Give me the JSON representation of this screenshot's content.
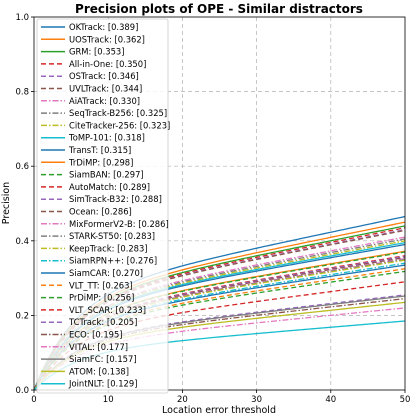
{
  "chart_data": {
    "type": "line",
    "title": "Precision plots of OPE - Similar distractors",
    "xlabel": "Location error threshold",
    "ylabel": "Precision",
    "xlim": [
      0,
      50
    ],
    "ylim": [
      0,
      1
    ],
    "x_ticks": [
      "0",
      "10",
      "20",
      "30",
      "40",
      "50"
    ],
    "y_ticks": [
      "0.0",
      "0.2",
      "0.4",
      "0.6",
      "0.8",
      "1.0"
    ],
    "grid": true,
    "legend_position": "upper-left",
    "series": [
      {
        "name": "OKTrack: [0.389]",
        "value": 0.389,
        "end": 0.465,
        "color": "#1f77b4",
        "dash": "solid"
      },
      {
        "name": "UOSTrack: [0.362]",
        "value": 0.362,
        "end": 0.45,
        "color": "#ff7f0e",
        "dash": "solid"
      },
      {
        "name": "GRM: [0.353]",
        "value": 0.353,
        "end": 0.44,
        "color": "#2ca02c",
        "dash": "solid"
      },
      {
        "name": "All-in-One: [0.350]",
        "value": 0.35,
        "end": 0.435,
        "color": "#d62728",
        "dash": "dashed"
      },
      {
        "name": "OSTrack: [0.346]",
        "value": 0.346,
        "end": 0.43,
        "color": "#9467bd",
        "dash": "dashed"
      },
      {
        "name": "UVLTrack: [0.344]",
        "value": 0.344,
        "end": 0.428,
        "color": "#8c564b",
        "dash": "dashed"
      },
      {
        "name": "AiATrack: [0.330]",
        "value": 0.33,
        "end": 0.41,
        "color": "#e377c2",
        "dash": "dashdot"
      },
      {
        "name": "SeqTrack-B256: [0.325]",
        "value": 0.325,
        "end": 0.405,
        "color": "#7f7f7f",
        "dash": "dashdot"
      },
      {
        "name": "CiteTracker-256: [0.323]",
        "value": 0.323,
        "end": 0.4,
        "color": "#bcbd22",
        "dash": "dashdot"
      },
      {
        "name": "ToMP-101: [0.318]",
        "value": 0.318,
        "end": 0.395,
        "color": "#17becf",
        "dash": "solid"
      },
      {
        "name": "TransT: [0.315]",
        "value": 0.315,
        "end": 0.39,
        "color": "#1f77b4",
        "dash": "solid"
      },
      {
        "name": "TrDiMP: [0.298]",
        "value": 0.298,
        "end": 0.372,
        "color": "#ff7f0e",
        "dash": "solid"
      },
      {
        "name": "SiamBAN: [0.297]",
        "value": 0.297,
        "end": 0.37,
        "color": "#2ca02c",
        "dash": "dashed"
      },
      {
        "name": "AutoMatch: [0.289]",
        "value": 0.289,
        "end": 0.36,
        "color": "#d62728",
        "dash": "dashed"
      },
      {
        "name": "SimTrack-B32: [0.288]",
        "value": 0.288,
        "end": 0.358,
        "color": "#9467bd",
        "dash": "dashed"
      },
      {
        "name": "Ocean: [0.286]",
        "value": 0.286,
        "end": 0.355,
        "color": "#8c564b",
        "dash": "dashed"
      },
      {
        "name": "MixFormerV2-B: [0.286]",
        "value": 0.286,
        "end": 0.352,
        "color": "#e377c2",
        "dash": "dashdot"
      },
      {
        "name": "STARK-ST50: [0.283]",
        "value": 0.283,
        "end": 0.35,
        "color": "#7f7f7f",
        "dash": "dashdot"
      },
      {
        "name": "KeepTrack: [0.283]",
        "value": 0.283,
        "end": 0.348,
        "color": "#bcbd22",
        "dash": "dashdot"
      },
      {
        "name": "SiamRPN++: [0.276]",
        "value": 0.276,
        "end": 0.34,
        "color": "#17becf",
        "dash": "dashdot"
      },
      {
        "name": "SiamCAR: [0.270]",
        "value": 0.27,
        "end": 0.335,
        "color": "#1f77b4",
        "dash": "solid"
      },
      {
        "name": "VLT_TT: [0.263]",
        "value": 0.263,
        "end": 0.325,
        "color": "#ff7f0e",
        "dash": "dashed"
      },
      {
        "name": "PrDiMP: [0.256]",
        "value": 0.256,
        "end": 0.318,
        "color": "#2ca02c",
        "dash": "dashed"
      },
      {
        "name": "VLT_SCAR: [0.233]",
        "value": 0.233,
        "end": 0.29,
        "color": "#d62728",
        "dash": "dashed"
      },
      {
        "name": "TCTrack: [0.205]",
        "value": 0.205,
        "end": 0.255,
        "color": "#9467bd",
        "dash": "dashed"
      },
      {
        "name": "ECO: [0.195]",
        "value": 0.195,
        "end": 0.245,
        "color": "#8c564b",
        "dash": "dashdot"
      },
      {
        "name": "VITAL: [0.177]",
        "value": 0.177,
        "end": 0.22,
        "color": "#e377c2",
        "dash": "dashdot"
      },
      {
        "name": "SiamFC: [0.157]",
        "value": 0.157,
        "end": 0.252,
        "color": "#7f7f7f",
        "dash": "solid"
      },
      {
        "name": "ATOM: [0.138]",
        "value": 0.138,
        "end": 0.235,
        "color": "#bcbd22",
        "dash": "solid"
      },
      {
        "name": "JointNLT: [0.129]",
        "value": 0.129,
        "end": 0.185,
        "color": "#17becf",
        "dash": "solid"
      }
    ]
  }
}
